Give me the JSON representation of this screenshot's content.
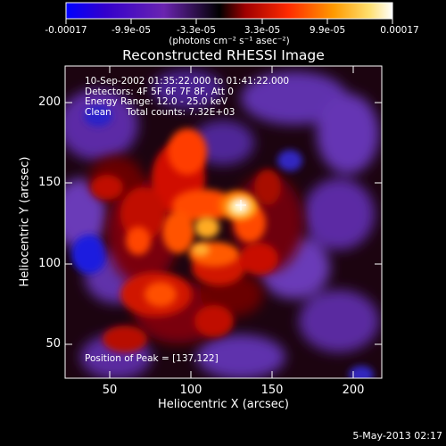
{
  "colorbar": {
    "tick_labels": [
      "-0.00017",
      "-9.9e-05",
      "-3.3e-05",
      "3.3e-05",
      "9.9e-05",
      "0.00017"
    ],
    "units": "(photons cm⁻² s⁻¹ asec⁻²)",
    "min": -0.00017,
    "max": 0.00017,
    "colormap_stops": [
      "#0000ff",
      "#3300cc",
      "#6a24b0",
      "#000000",
      "#a00000",
      "#ff2a00",
      "#ff9a00",
      "#ffe070",
      "#ffffff"
    ]
  },
  "plot": {
    "title": "Reconstructed RHESSI Image",
    "annotation_lines": [
      "10-Sep-2002 01:35:22.000 to 01:41:22.000",
      "Detectors: 4F 5F 6F 7F 8F, Att 0",
      "Energy Range: 12.0 - 25.0 keV",
      "Clean     Total counts: 7.32E+03"
    ],
    "peak_label": "Position of Peak = [137,122]",
    "x_axis": {
      "label": "Heliocentric X (arcsec)",
      "ticks": [
        "50",
        "100",
        "150",
        "200"
      ],
      "range": [
        25,
        220
      ]
    },
    "y_axis": {
      "label": "Heliocentric Y (arcsec)",
      "ticks": [
        "50",
        "100",
        "150",
        "200"
      ],
      "range": [
        28,
        222
      ]
    }
  },
  "footer": {
    "timestamp": "5-May-2013 02:17"
  }
}
